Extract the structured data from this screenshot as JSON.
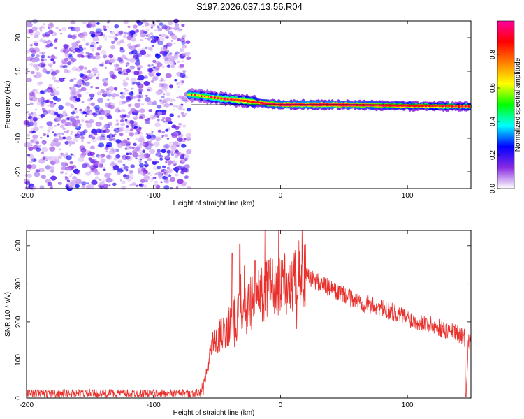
{
  "title": "S197.2026.037.13.56.R04",
  "chart_data": [
    {
      "type": "heatmap",
      "xlabel": "Height of straight line (km)",
      "ylabel": "Frequency (Hz)",
      "xlim": [
        -200,
        150
      ],
      "ylim": [
        -25,
        25
      ],
      "x_ticks": [
        -200,
        -100,
        0,
        100
      ],
      "y_ticks": [
        -20,
        -10,
        0,
        10,
        20
      ],
      "colorbar": {
        "label": "Normalized spectral amplitude",
        "range": [
          0,
          1
        ],
        "ticks": [
          0.0,
          0.2,
          0.4,
          0.6,
          0.8
        ],
        "tick_labels": [
          "0.0",
          "0.2",
          "0.4",
          "0.6",
          "0.8"
        ],
        "colors": [
          "#ffffff",
          "#8a2be2",
          "#0000ff",
          "#00ffff",
          "#00ff00",
          "#ffff00",
          "#ff8000",
          "#ff0000",
          "#ff00a0"
        ]
      },
      "noise_region": {
        "x_range": [
          -200,
          -72
        ],
        "y_range": [
          -25,
          25
        ],
        "amplitude": "low (0.05–0.25)"
      },
      "ridge": {
        "x": [
          -72,
          -60,
          -50,
          -40,
          -30,
          -20,
          -10,
          0,
          20,
          40,
          60,
          80,
          100,
          120,
          150
        ],
        "frequency": [
          3,
          2.5,
          2.0,
          1.6,
          1.2,
          0.8,
          0.3,
          0,
          0,
          0,
          -0.1,
          -0.2,
          -0.3,
          -0.4,
          -0.5
        ],
        "amplitude": [
          0.5,
          0.55,
          0.6,
          0.65,
          0.7,
          0.75,
          0.8,
          0.85,
          0.9,
          0.9,
          0.85,
          0.8,
          0.75,
          0.7,
          0.65
        ]
      },
      "reference_line": {
        "frequency": 0,
        "x_range": [
          -70,
          150
        ]
      }
    },
    {
      "type": "line",
      "xlabel": "Height of straight line (km)",
      "ylabel": "SNR (10 * v/v)",
      "xlim": [
        -200,
        150
      ],
      "ylim": [
        0,
        440
      ],
      "x_ticks": [
        -200,
        -100,
        0,
        100
      ],
      "y_ticks": [
        0,
        100,
        200,
        300,
        400
      ],
      "series": [
        {
          "color": "#e8302c",
          "x": [
            -200,
            -150,
            -100,
            -70,
            -62,
            -58,
            -55,
            -50,
            -45,
            -40,
            -35,
            -30,
            -25,
            -20,
            -15,
            -12,
            -10,
            -5,
            0,
            10,
            20,
            30,
            40,
            50,
            60,
            70,
            80,
            90,
            100,
            110,
            120,
            130,
            140,
            145,
            146,
            148,
            150
          ],
          "y": [
            12,
            12,
            12,
            12,
            15,
            70,
            120,
            160,
            170,
            190,
            220,
            240,
            250,
            260,
            270,
            280,
            290,
            300,
            295,
            305,
            320,
            305,
            285,
            270,
            255,
            245,
            235,
            225,
            210,
            200,
            190,
            180,
            170,
            160,
            5,
            150,
            150
          ]
        }
      ],
      "spikes": [
        {
          "x": -32,
          "y": 405
        },
        {
          "x": -12,
          "y": 440
        },
        {
          "x": -20,
          "y": 360
        },
        {
          "x": -38,
          "y": 380
        }
      ]
    }
  ]
}
